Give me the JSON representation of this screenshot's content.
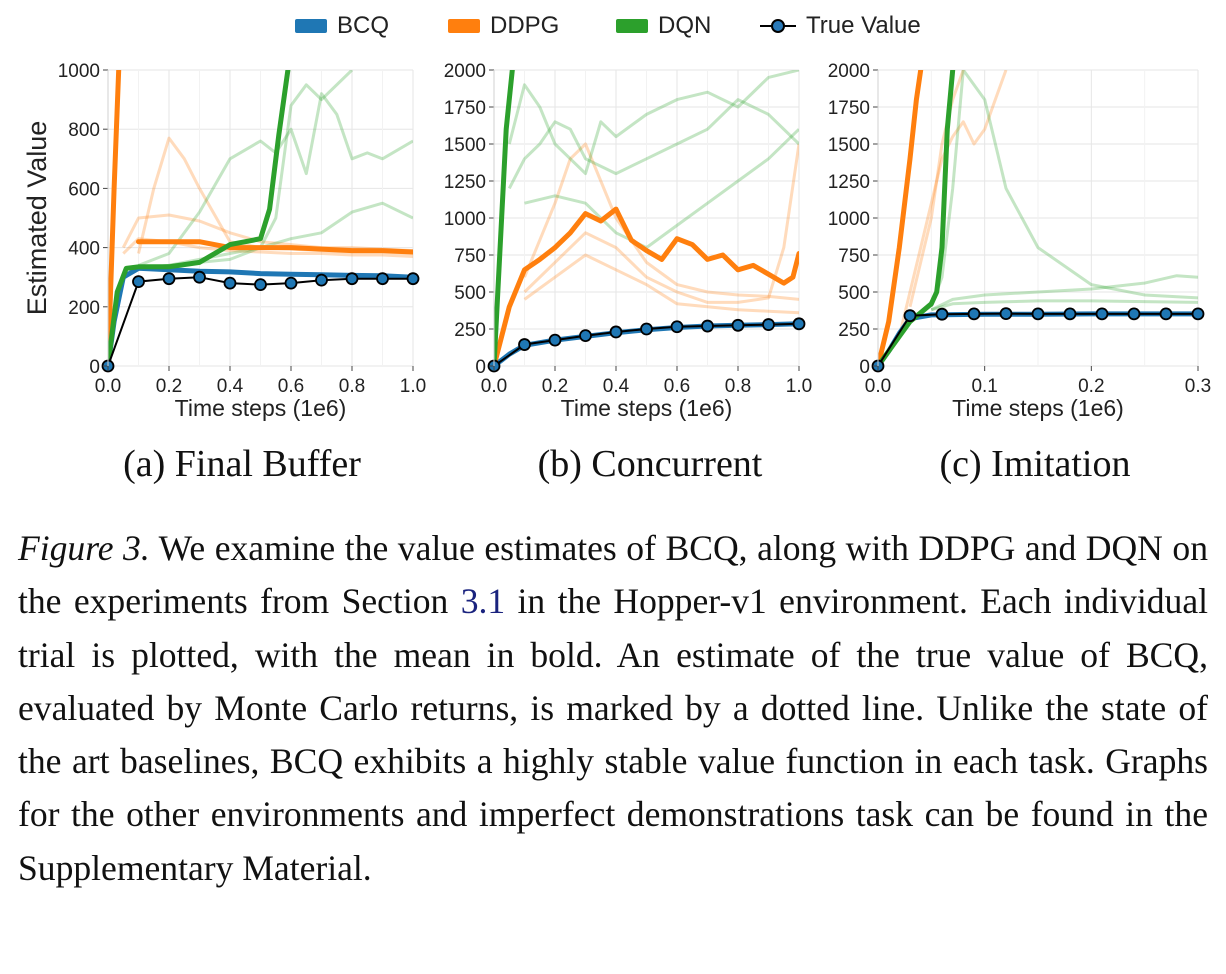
{
  "legend": [
    {
      "name": "BCQ",
      "color": "#1f77b4",
      "kind": "swatch"
    },
    {
      "name": "DDPG",
      "color": "#ff7f0e",
      "kind": "swatch"
    },
    {
      "name": "DQN",
      "color": "#2ca02c",
      "kind": "swatch"
    },
    {
      "name": "True Value",
      "color": "#1f77b4",
      "kind": "line-marker"
    }
  ],
  "chart_data": [
    {
      "type": "line",
      "subcaption": "(a) Final Buffer",
      "xlabel": "Time steps (1e6)",
      "ylabel": "Estimated Value",
      "xlim": [
        0,
        1.0
      ],
      "ylim": [
        0,
        1000
      ],
      "xticks": [
        0.0,
        0.2,
        0.4,
        0.6,
        0.8,
        1.0
      ],
      "xtick_labels": [
        "0.0",
        "0.2",
        "0.4",
        "0.6",
        "0.8",
        "1.0"
      ],
      "yticks": [
        0,
        200,
        400,
        600,
        800,
        1000
      ],
      "ytick_labels": [
        "0",
        "200",
        "400",
        "600",
        "800",
        "1000"
      ],
      "grid": true,
      "series": [
        {
          "name": "BCQ",
          "color": "#1f77b4",
          "x": [
            0,
            0.02,
            0.05,
            0.1,
            0.2,
            0.3,
            0.4,
            0.5,
            0.6,
            0.7,
            0.8,
            0.9,
            1.0
          ],
          "mean": [
            0,
            150,
            300,
            330,
            325,
            320,
            318,
            312,
            310,
            308,
            306,
            305,
            300
          ],
          "trials": []
        },
        {
          "name": "DDPG",
          "color": "#ff7f0e",
          "x": [
            0,
            0.02,
            0.035,
            0.04,
            0.1,
            0.2,
            0.3,
            0.4,
            0.5,
            0.6,
            0.7,
            0.8,
            0.9,
            1.0
          ],
          "mean": [
            0,
            600,
            1000,
            null,
            420,
            420,
            420,
            400,
            400,
            400,
            395,
            390,
            390,
            385
          ],
          "trials": [
            {
              "x": [
                0.1,
                0.15,
                0.2,
                0.25,
                0.3,
                0.4,
                0.5,
                0.6,
                0.7,
                0.8,
                0.9,
                1.0
              ],
              "y": [
                380,
                600,
                770,
                700,
                600,
                420,
                400,
                395,
                390,
                385,
                385,
                380
              ]
            },
            {
              "x": [
                0.05,
                0.1,
                0.2,
                0.3,
                0.4,
                0.5,
                0.6,
                0.7,
                0.8,
                0.9,
                1.0
              ],
              "y": [
                400,
                500,
                510,
                490,
                450,
                420,
                410,
                400,
                400,
                395,
                390
              ]
            },
            {
              "x": [
                0.05,
                0.1,
                0.2,
                0.3,
                0.4,
                0.5,
                0.6,
                0.7,
                0.8,
                0.9,
                1.0
              ],
              "y": [
                380,
                430,
                420,
                400,
                390,
                385,
                380,
                380,
                375,
                375,
                370
              ]
            }
          ]
        },
        {
          "name": "DQN",
          "color": "#2ca02c",
          "x": [
            0,
            0.03,
            0.06,
            0.1,
            0.2,
            0.3,
            0.4,
            0.45,
            0.5,
            0.53,
            0.56,
            0.59
          ],
          "mean": [
            0,
            250,
            330,
            335,
            335,
            350,
            410,
            420,
            430,
            530,
            780,
            1000
          ],
          "trials": [
            {
              "x": [
                0.1,
                0.2,
                0.3,
                0.4,
                0.5,
                0.55,
                0.6,
                0.65,
                0.7,
                0.75,
                0.8,
                0.85,
                0.9,
                1.0
              ],
              "y": [
                340,
                380,
                520,
                700,
                760,
                720,
                800,
                650,
                920,
                850,
                700,
                720,
                700,
                760
              ]
            },
            {
              "x": [
                0.1,
                0.2,
                0.3,
                0.4,
                0.5,
                0.6,
                0.7,
                0.8,
                0.9,
                1.0
              ],
              "y": [
                330,
                340,
                360,
                380,
                400,
                430,
                450,
                520,
                550,
                500
              ]
            },
            {
              "x": [
                0.1,
                0.2,
                0.3,
                0.4,
                0.5,
                0.55,
                0.6,
                0.65,
                0.7,
                0.8
              ],
              "y": [
                330,
                340,
                350,
                360,
                400,
                500,
                880,
                950,
                900,
                1000
              ]
            }
          ]
        },
        {
          "name": "True Value",
          "color": "#1f77b4",
          "x": [
            0.0,
            0.1,
            0.2,
            0.3,
            0.4,
            0.5,
            0.6,
            0.7,
            0.8,
            0.9,
            1.0
          ],
          "y": [
            0,
            285,
            295,
            300,
            280,
            275,
            280,
            290,
            295,
            295,
            295
          ]
        }
      ]
    },
    {
      "type": "line",
      "subcaption": "(b) Concurrent",
      "xlabel": "Time steps (1e6)",
      "ylabel": "",
      "xlim": [
        0,
        1.0
      ],
      "ylim": [
        0,
        2000
      ],
      "xticks": [
        0.0,
        0.2,
        0.4,
        0.6,
        0.8,
        1.0
      ],
      "xtick_labels": [
        "0.0",
        "0.2",
        "0.4",
        "0.6",
        "0.8",
        "1.0"
      ],
      "yticks": [
        0,
        250,
        500,
        750,
        1000,
        1250,
        1500,
        1750,
        2000
      ],
      "ytick_labels": [
        "0",
        "250",
        "500",
        "750",
        "1000",
        "1250",
        "1500",
        "1750",
        "2000"
      ],
      "grid": true,
      "series": [
        {
          "name": "BCQ",
          "color": "#1f77b4",
          "x": [
            0,
            0.05,
            0.1,
            0.2,
            0.3,
            0.4,
            0.5,
            0.6,
            0.7,
            0.8,
            0.9,
            1.0
          ],
          "mean": [
            0,
            80,
            140,
            175,
            200,
            225,
            245,
            260,
            270,
            275,
            280,
            285
          ],
          "trials": []
        },
        {
          "name": "DDPG",
          "color": "#ff7f0e",
          "x": [
            0,
            0.05,
            0.1,
            0.15,
            0.2,
            0.25,
            0.3,
            0.35,
            0.4,
            0.45,
            0.5,
            0.55,
            0.6,
            0.65,
            0.7,
            0.75,
            0.8,
            0.85,
            0.9,
            0.95,
            0.98,
            1.0
          ],
          "mean": [
            0,
            400,
            650,
            720,
            800,
            900,
            1030,
            980,
            1060,
            850,
            780,
            720,
            860,
            820,
            720,
            750,
            650,
            680,
            620,
            560,
            600,
            760
          ],
          "trials": [
            {
              "x": [
                0.1,
                0.2,
                0.25,
                0.3,
                0.35,
                0.4,
                0.5,
                0.6,
                0.7,
                0.8,
                0.9,
                1.0
              ],
              "y": [
                600,
                1100,
                1400,
                1500,
                1250,
                1000,
                700,
                550,
                500,
                480,
                470,
                450
              ]
            },
            {
              "x": [
                0.1,
                0.2,
                0.3,
                0.4,
                0.5,
                0.6,
                0.7,
                0.8,
                0.9,
                0.95,
                1.0
              ],
              "y": [
                500,
                700,
                900,
                800,
                600,
                500,
                430,
                430,
                460,
                800,
                1500
              ]
            },
            {
              "x": [
                0.1,
                0.2,
                0.3,
                0.4,
                0.5,
                0.6,
                0.7,
                0.8,
                0.9,
                1.0
              ],
              "y": [
                450,
                600,
                750,
                650,
                550,
                420,
                400,
                380,
                370,
                360
              ]
            }
          ]
        },
        {
          "name": "DQN",
          "color": "#2ca02c",
          "x": [
            0,
            0.02,
            0.04,
            0.06
          ],
          "mean": [
            0,
            800,
            1600,
            2000
          ],
          "trials": [
            {
              "x": [
                0.05,
                0.1,
                0.15,
                0.2,
                0.25,
                0.3,
                0.35,
                0.4,
                0.5,
                0.6,
                0.7,
                0.8,
                0.9,
                1.0
              ],
              "y": [
                1500,
                1900,
                1750,
                1500,
                1400,
                1300,
                1650,
                1550,
                1700,
                1800,
                1850,
                1750,
                1950,
                2000
              ]
            },
            {
              "x": [
                0.05,
                0.1,
                0.15,
                0.2,
                0.25,
                0.3,
                0.4,
                0.5,
                0.6,
                0.7,
                0.8,
                0.9,
                1.0
              ],
              "y": [
                1200,
                1400,
                1500,
                1650,
                1600,
                1400,
                1300,
                1400,
                1500,
                1600,
                1800,
                1700,
                1500
              ]
            },
            {
              "x": [
                0.1,
                0.2,
                0.3,
                0.4,
                0.5,
                0.6,
                0.7,
                0.8,
                0.9,
                1.0
              ],
              "y": [
                1100,
                1150,
                1100,
                900,
                800,
                950,
                1100,
                1250,
                1400,
                1600
              ]
            }
          ]
        },
        {
          "name": "True Value",
          "color": "#1f77b4",
          "x": [
            0.0,
            0.1,
            0.2,
            0.3,
            0.4,
            0.5,
            0.6,
            0.7,
            0.8,
            0.9,
            1.0
          ],
          "y": [
            0,
            145,
            175,
            205,
            230,
            250,
            265,
            270,
            275,
            280,
            285
          ]
        }
      ]
    },
    {
      "type": "line",
      "subcaption": "(c) Imitation",
      "xlabel": "Time steps (1e6)",
      "ylabel": "",
      "xlim": [
        0,
        0.3
      ],
      "ylim": [
        0,
        2000
      ],
      "xticks": [
        0.0,
        0.1,
        0.2,
        0.3
      ],
      "xtick_labels": [
        "0.0",
        "0.1",
        "0.2",
        "0.3"
      ],
      "yticks": [
        0,
        250,
        500,
        750,
        1000,
        1250,
        1500,
        1750,
        2000
      ],
      "ytick_labels": [
        "0",
        "250",
        "500",
        "750",
        "1000",
        "1250",
        "1500",
        "1750",
        "2000"
      ],
      "grid": true,
      "series": [
        {
          "name": "BCQ",
          "color": "#1f77b4",
          "x": [
            0,
            0.01,
            0.02,
            0.03,
            0.05,
            0.1,
            0.15,
            0.2,
            0.25,
            0.3
          ],
          "mean": [
            0,
            100,
            220,
            320,
            345,
            350,
            350,
            352,
            352,
            352
          ],
          "trials": []
        },
        {
          "name": "DDPG",
          "color": "#ff7f0e",
          "x": [
            0,
            0.01,
            0.02,
            0.03,
            0.036,
            0.04
          ],
          "mean": [
            0,
            300,
            800,
            1400,
            1800,
            2000
          ],
          "trials": [
            {
              "x": [
                0.02,
                0.04,
                0.06,
                0.07,
                0.08,
                0.09,
                0.1,
                0.11,
                0.12
              ],
              "y": [
                200,
                800,
                1400,
                1550,
                1650,
                1500,
                1600,
                1800,
                2000
              ]
            },
            {
              "x": [
                0.03,
                0.05,
                0.06,
                0.07,
                0.08
              ],
              "y": [
                400,
                1000,
                1500,
                1800,
                2000
              ]
            }
          ]
        },
        {
          "name": "DQN",
          "color": "#2ca02c",
          "x": [
            0,
            0.03,
            0.04,
            0.05,
            0.055,
            0.06,
            0.065,
            0.07
          ],
          "mean": [
            0,
            300,
            360,
            420,
            500,
            800,
            1600,
            2000
          ],
          "trials": [
            {
              "x": [
                0.05,
                0.06,
                0.07,
                0.08,
                0.1,
                0.12,
                0.15,
                0.2,
                0.25,
                0.3
              ],
              "y": [
                400,
                600,
                1200,
                2000,
                1800,
                1200,
                800,
                550,
                480,
                460
              ]
            },
            {
              "x": [
                0.05,
                0.07,
                0.1,
                0.15,
                0.2,
                0.25,
                0.28,
                0.3
              ],
              "y": [
                380,
                450,
                480,
                500,
                520,
                560,
                610,
                600
              ]
            },
            {
              "x": [
                0.05,
                0.07,
                0.1,
                0.15,
                0.2,
                0.3
              ],
              "y": [
                380,
                420,
                430,
                440,
                440,
                430
              ]
            }
          ]
        },
        {
          "name": "True Value",
          "color": "#1f77b4",
          "x": [
            0.0,
            0.03,
            0.06,
            0.09,
            0.12,
            0.15,
            0.18,
            0.21,
            0.24,
            0.27,
            0.3
          ],
          "y": [
            0,
            340,
            350,
            352,
            354,
            352,
            352,
            352,
            352,
            352,
            352
          ]
        }
      ]
    }
  ],
  "caption": {
    "figure_label": "Figure 3.",
    "text_before_ref": " We examine the value estimates of BCQ, along with DDPG and DQN on the experiments from Section ",
    "section_ref": "3.1",
    "text_after_ref": " in the Hopper-v1 environment.  Each individual trial is plotted, with the mean in bold. An estimate of the true value of BCQ, evaluated by Monte Carlo returns, is marked by a dotted line. Unlike the state of the art baselines, BCQ exhibits a highly stable value function in each task.  Graphs for the other environments and imperfect demonstrations task can be found in the Supplementary Material."
  }
}
